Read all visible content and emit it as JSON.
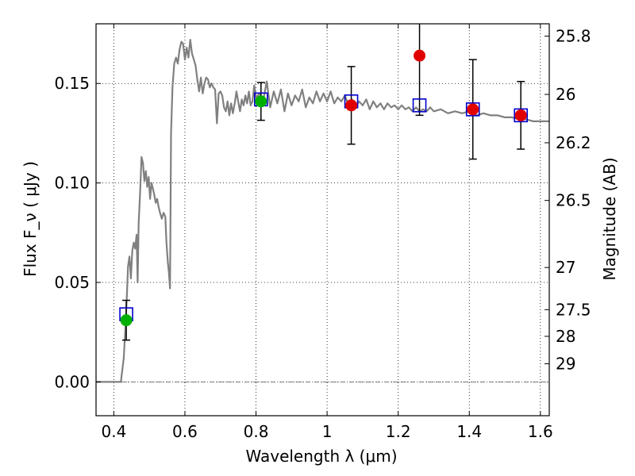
{
  "chart_data": {
    "type": "scatter",
    "xlabel": "Wavelength  λ (μm)",
    "ylabel": "Flux  F_ν  ( μJy )",
    "y2label": "Magnitude (AB)",
    "xlim": [
      0.35,
      1.625
    ],
    "ylim": [
      -0.017,
      0.18
    ],
    "grid": true,
    "x_ticks": [
      0.4,
      0.6,
      0.8,
      1.0,
      1.2,
      1.4,
      1.6
    ],
    "x_tick_labels": [
      "0.4",
      "0.6",
      "0.8",
      "1",
      "1.2",
      "1.4",
      "1.6"
    ],
    "y_ticks": [
      0.0,
      0.05,
      0.1,
      0.15
    ],
    "y_tick_labels": [
      "0.00",
      "0.05",
      "0.10",
      "0.15"
    ],
    "y2_ticks": [
      {
        "label": "25.8",
        "flux": 0.1738
      },
      {
        "label": "26",
        "flux": 0.1445
      },
      {
        "label": "26.2",
        "flux": 0.1202
      },
      {
        "label": "26.5",
        "flux": 0.0912
      },
      {
        "label": "27",
        "flux": 0.0575
      },
      {
        "label": "27.5",
        "flux": 0.0363
      },
      {
        "label": "28",
        "flux": 0.0229
      },
      {
        "label": "29",
        "flux": 0.0091
      }
    ],
    "model_spectrum": [
      [
        0.35,
        0.0
      ],
      [
        0.41,
        0.0
      ],
      [
        0.42,
        0.0
      ],
      [
        0.428,
        0.012
      ],
      [
        0.432,
        0.025
      ],
      [
        0.436,
        0.04
      ],
      [
        0.44,
        0.058
      ],
      [
        0.444,
        0.063
      ],
      [
        0.448,
        0.052
      ],
      [
        0.452,
        0.066
      ],
      [
        0.456,
        0.07
      ],
      [
        0.46,
        0.067
      ],
      [
        0.464,
        0.074
      ],
      [
        0.467,
        0.05
      ],
      [
        0.47,
        0.08
      ],
      [
        0.474,
        0.095
      ],
      [
        0.478,
        0.113
      ],
      [
        0.482,
        0.11
      ],
      [
        0.486,
        0.101
      ],
      [
        0.49,
        0.106
      ],
      [
        0.494,
        0.098
      ],
      [
        0.498,
        0.103
      ],
      [
        0.502,
        0.092
      ],
      [
        0.506,
        0.1
      ],
      [
        0.51,
        0.097
      ],
      [
        0.514,
        0.094
      ],
      [
        0.518,
        0.09
      ],
      [
        0.522,
        0.092
      ],
      [
        0.526,
        0.088
      ],
      [
        0.53,
        0.085
      ],
      [
        0.535,
        0.082
      ],
      [
        0.54,
        0.085
      ],
      [
        0.545,
        0.083
      ],
      [
        0.548,
        0.07
      ],
      [
        0.552,
        0.06
      ],
      [
        0.555,
        0.055
      ],
      [
        0.558,
        0.047
      ],
      [
        0.561,
        0.125
      ],
      [
        0.565,
        0.148
      ],
      [
        0.57,
        0.16
      ],
      [
        0.575,
        0.163
      ],
      [
        0.58,
        0.16
      ],
      [
        0.585,
        0.167
      ],
      [
        0.59,
        0.171
      ],
      [
        0.595,
        0.17
      ],
      [
        0.6,
        0.162
      ],
      [
        0.605,
        0.168
      ],
      [
        0.61,
        0.163
      ],
      [
        0.615,
        0.172
      ],
      [
        0.62,
        0.165
      ],
      [
        0.625,
        0.162
      ],
      [
        0.63,
        0.159
      ],
      [
        0.635,
        0.152
      ],
      [
        0.64,
        0.146
      ],
      [
        0.645,
        0.153
      ],
      [
        0.65,
        0.145
      ],
      [
        0.655,
        0.15
      ],
      [
        0.66,
        0.153
      ],
      [
        0.665,
        0.152
      ],
      [
        0.67,
        0.148
      ],
      [
        0.675,
        0.15
      ],
      [
        0.68,
        0.148
      ],
      [
        0.685,
        0.147
      ],
      [
        0.69,
        0.13
      ],
      [
        0.695,
        0.145
      ],
      [
        0.7,
        0.146
      ],
      [
        0.705,
        0.144
      ],
      [
        0.71,
        0.138
      ],
      [
        0.715,
        0.136
      ],
      [
        0.72,
        0.141
      ],
      [
        0.725,
        0.134
      ],
      [
        0.73,
        0.14
      ],
      [
        0.735,
        0.135
      ],
      [
        0.74,
        0.14
      ],
      [
        0.745,
        0.146
      ],
      [
        0.75,
        0.141
      ],
      [
        0.755,
        0.136
      ],
      [
        0.76,
        0.142
      ],
      [
        0.765,
        0.139
      ],
      [
        0.77,
        0.144
      ],
      [
        0.775,
        0.14
      ],
      [
        0.78,
        0.146
      ],
      [
        0.785,
        0.139
      ],
      [
        0.79,
        0.141
      ],
      [
        0.795,
        0.149
      ],
      [
        0.8,
        0.143
      ],
      [
        0.81,
        0.145
      ],
      [
        0.82,
        0.141
      ],
      [
        0.83,
        0.151
      ],
      [
        0.84,
        0.138
      ],
      [
        0.85,
        0.146
      ],
      [
        0.86,
        0.14
      ],
      [
        0.87,
        0.147
      ],
      [
        0.88,
        0.136
      ],
      [
        0.89,
        0.145
      ],
      [
        0.9,
        0.139
      ],
      [
        0.91,
        0.144
      ],
      [
        0.92,
        0.141
      ],
      [
        0.93,
        0.147
      ],
      [
        0.94,
        0.138
      ],
      [
        0.95,
        0.143
      ],
      [
        0.96,
        0.14
      ],
      [
        0.97,
        0.146
      ],
      [
        0.98,
        0.141
      ],
      [
        0.99,
        0.145
      ],
      [
        1.0,
        0.141
      ],
      [
        1.01,
        0.146
      ],
      [
        1.02,
        0.14
      ],
      [
        1.03,
        0.143
      ],
      [
        1.04,
        0.141
      ],
      [
        1.05,
        0.144
      ],
      [
        1.06,
        0.139
      ],
      [
        1.07,
        0.142
      ],
      [
        1.08,
        0.138
      ],
      [
        1.09,
        0.141
      ],
      [
        1.1,
        0.139
      ],
      [
        1.11,
        0.142
      ],
      [
        1.12,
        0.137
      ],
      [
        1.13,
        0.141
      ],
      [
        1.14,
        0.138
      ],
      [
        1.15,
        0.14
      ],
      [
        1.16,
        0.137
      ],
      [
        1.17,
        0.14
      ],
      [
        1.18,
        0.138
      ],
      [
        1.19,
        0.139
      ],
      [
        1.2,
        0.137
      ],
      [
        1.21,
        0.139
      ],
      [
        1.22,
        0.137
      ],
      [
        1.23,
        0.138
      ],
      [
        1.24,
        0.136
      ],
      [
        1.25,
        0.138
      ],
      [
        1.26,
        0.136
      ],
      [
        1.27,
        0.137
      ],
      [
        1.28,
        0.136
      ],
      [
        1.29,
        0.138
      ],
      [
        1.3,
        0.136
      ],
      [
        1.32,
        0.137
      ],
      [
        1.34,
        0.135
      ],
      [
        1.36,
        0.136
      ],
      [
        1.38,
        0.135
      ],
      [
        1.4,
        0.136
      ],
      [
        1.42,
        0.134
      ],
      [
        1.44,
        0.135
      ],
      [
        1.46,
        0.134
      ],
      [
        1.48,
        0.134
      ],
      [
        1.5,
        0.133
      ],
      [
        1.52,
        0.133
      ],
      [
        1.54,
        0.132
      ],
      [
        1.56,
        0.132
      ],
      [
        1.58,
        0.131
      ],
      [
        1.6,
        0.131
      ],
      [
        1.625,
        0.131
      ]
    ],
    "model_photometry": [
      {
        "x": 0.435,
        "y": 0.034
      },
      {
        "x": 0.814,
        "y": 0.142
      },
      {
        "x": 1.068,
        "y": 0.141
      },
      {
        "x": 1.26,
        "y": 0.139
      },
      {
        "x": 1.41,
        "y": 0.137
      },
      {
        "x": 1.545,
        "y": 0.134
      }
    ],
    "observed_points": [
      {
        "x": 0.435,
        "y": 0.031,
        "err": 0.01,
        "color": "#00b000"
      },
      {
        "x": 0.814,
        "y": 0.141,
        "err": 0.0095,
        "color": "#00b000"
      },
      {
        "x": 1.068,
        "y": 0.139,
        "err": 0.0195,
        "color": "#e00000"
      },
      {
        "x": 1.26,
        "y": 0.164,
        "err": 0.03,
        "color": "#e00000"
      },
      {
        "x": 1.41,
        "y": 0.137,
        "err": 0.025,
        "color": "#e00000"
      },
      {
        "x": 1.545,
        "y": 0.134,
        "err": 0.017,
        "color": "#e00000"
      }
    ],
    "colors": {
      "spectrum": "#808080",
      "model_box": "#0000cc",
      "errorbar": "#000000"
    }
  }
}
